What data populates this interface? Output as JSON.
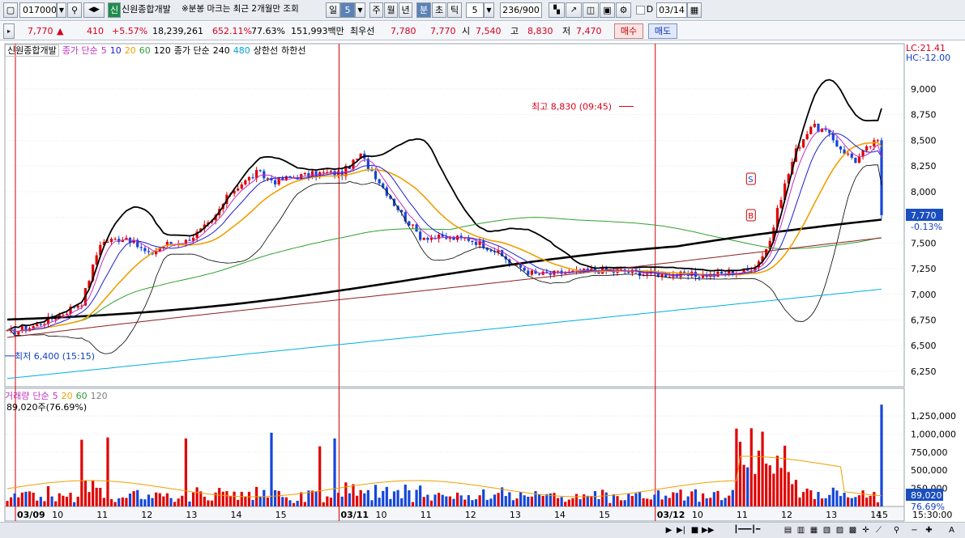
{
  "toolbar": {
    "code": "017000",
    "badge": "신",
    "stock_name": "신원종합개발",
    "notice": "※분봉 마크는 최근 2개월만 조회",
    "periods": [
      "일",
      "5",
      "주",
      "월",
      "년",
      "분",
      "초",
      "틱"
    ],
    "interval": "5",
    "count": "236/900",
    "checkbox_label": "D",
    "date": "03/14"
  },
  "info": {
    "price": "7,770",
    "up_arrow": "▲",
    "change": "410",
    "change_pct": "+5.57%",
    "volume": "18,239,261",
    "vol_pct": "652.11%",
    "ratio": "77.63%",
    "amount": "151,993백만",
    "best_label": "최우선",
    "best_ask": "7,780",
    "best_bid": "7,770",
    "open_label": "시",
    "open": "7,540",
    "high_label": "고",
    "high": "8,830",
    "low_label": "저",
    "low": "7,470",
    "buy_label": "매수",
    "sell_label": "매도"
  },
  "legend_price": {
    "name": "신원종합개발",
    "ma_label": "종가 단순",
    "ma_periods": [
      "5",
      "10",
      "20",
      "60",
      "120"
    ],
    "ma2_label": "종가 단순",
    "ma2_periods": [
      "240",
      "480"
    ],
    "upper": "상한선",
    "lower": "하한선"
  },
  "legend_volume": {
    "name": "거래량",
    "ma_label": "단순",
    "ma_periods": [
      "5",
      "20",
      "60",
      "120"
    ],
    "summary": "89,020주(76.69%)"
  },
  "lc_hc": {
    "lc": "LC:21.41",
    "hc": "HC:-12.00"
  },
  "annotations": {
    "high": "최고 8,830 (09:45)",
    "low": "최저 6,400 (15:15)",
    "current_price": "7,770",
    "current_pct": "-0.13%",
    "current_vol": "89,020",
    "current_vol_pct": "76.69%",
    "s_marker": "S",
    "b_marker": "B"
  },
  "colors": {
    "up": "#e00000",
    "down": "#1546d8",
    "ma5": "#c030c0",
    "ma10": "#2020d0",
    "ma20": "#f0a000",
    "ma60": "#30a030",
    "ma120": "#8b2020",
    "ma240": "#000000",
    "ma480": "#00b0e0",
    "band": "#000000"
  },
  "chart_data": {
    "type": "candlestick",
    "interval": "5분",
    "y_axis": [
      {
        "value": 9000,
        "label": "9,000"
      },
      {
        "value": 8750,
        "label": "8,750"
      },
      {
        "value": 8500,
        "label": "8,500"
      },
      {
        "value": 8250,
        "label": "8,250"
      },
      {
        "value": 8000,
        "label": "8,000"
      },
      {
        "value": 7750,
        "label": "7,750"
      },
      {
        "value": 7500,
        "label": "7,500"
      },
      {
        "value": 7250,
        "label": "7,250"
      },
      {
        "value": 7000,
        "label": "7,000"
      },
      {
        "value": 6750,
        "label": "6,750"
      },
      {
        "value": 6500,
        "label": "6,500"
      },
      {
        "value": 6250,
        "label": "6,250"
      }
    ],
    "ylim": [
      6100,
      9330
    ],
    "vol_axis": [
      {
        "value": 1250000,
        "label": "1,250,000"
      },
      {
        "value": 1000000,
        "label": "1,000,000"
      },
      {
        "value": 750000,
        "label": "750,000"
      },
      {
        "value": 500000,
        "label": "500,000"
      },
      {
        "value": 250000,
        "label": "250,000"
      }
    ],
    "vol_max": 1430000,
    "x_labels": [
      "03/09",
      "10",
      "11",
      "12",
      "13",
      "14",
      "15",
      "03/11",
      "10",
      "11",
      "12",
      "13",
      "14",
      "15",
      "03/12",
      "10",
      "11",
      "12",
      "13",
      "14",
      "15"
    ],
    "session_day_labels": [
      "03/09",
      "03/11",
      "03/12"
    ],
    "time_label": "15:30:00",
    "high": {
      "value": 8830,
      "label": "최고 8,830 (09:45)"
    },
    "low": {
      "value": 6400,
      "label": "최저 6,400 (15:15)"
    },
    "last": 7770
  }
}
